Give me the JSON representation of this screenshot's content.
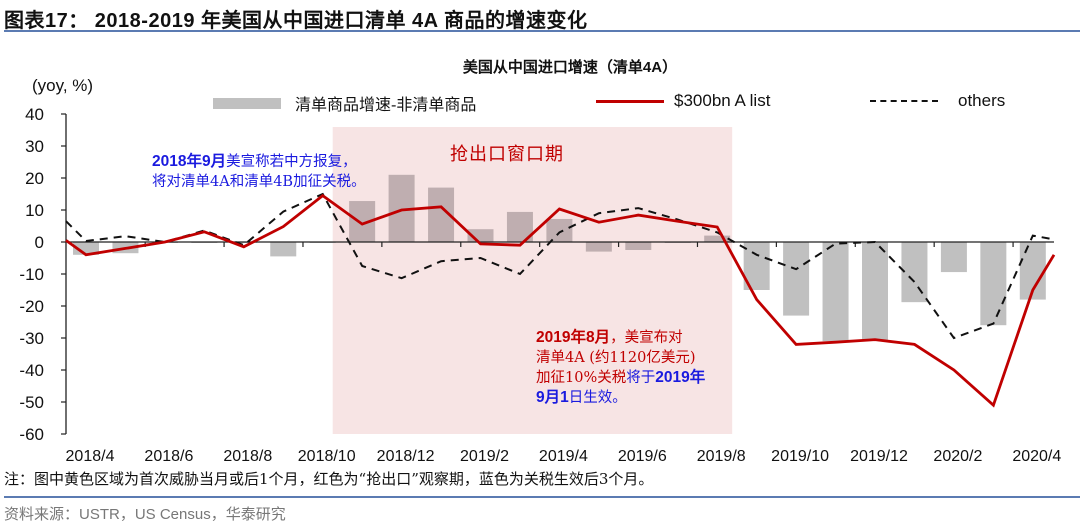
{
  "figure": {
    "title": "图表17：  2018-2019 年美国从中国进口清单 4A 商品的增速变化",
    "note": "注：图中黄色区域为首次威胁当月或后1个月，红色为“抢出口”观察期，蓝色为关税生效后3个月。",
    "source": "资料来源：USTR，US Census，华泰研究"
  },
  "annotations": {
    "window_label": "抢出口窗口期",
    "sept2018": {
      "line1_bold": "2018年9月",
      "line1_rest": "美宣称若中方报复，",
      "line2": "将对清单4A和清单4B加征关税。"
    },
    "aug2019": {
      "line1_bold": "2019年8月",
      "line1_rest": "，美宣布对",
      "line2": "清单4A (约1120亿美元)",
      "line3_red": "加征10%关税",
      "line3_blue": "将于",
      "line3_bold": "2019年",
      "line4_bold": "9月1",
      "line4_rest": "日生效。"
    }
  },
  "colors": {
    "bar": "#c0c0c0",
    "bar_in_window": "#bfaeb0",
    "red_line": "#c00000",
    "dash_line": "#111111",
    "window_fill": "#f7e4e4",
    "rule": "#5b7bb2",
    "annotation_blue": "#1a1adf"
  },
  "chart_data": {
    "type": "bar+line",
    "title": "美国从中国进口增速（清单4A）",
    "ylabel": "(yoy, %)",
    "xlabel": "",
    "ylim": [
      -60,
      40
    ],
    "yticks": [
      40,
      30,
      20,
      10,
      0,
      -10,
      -20,
      -30,
      -40,
      -50,
      -60
    ],
    "xtick_labels": [
      "2018/4",
      "2018/6",
      "2018/8",
      "2018/10",
      "2018/12",
      "2019/2",
      "2019/4",
      "2019/6",
      "2019/8",
      "2019/10",
      "2019/12",
      "2020/2",
      "2020/4"
    ],
    "categories": [
      "2018/4",
      "2018/5",
      "2018/6",
      "2018/7",
      "2018/8",
      "2018/9",
      "2018/10",
      "2018/11",
      "2018/12",
      "2019/1",
      "2019/2",
      "2019/3",
      "2019/4",
      "2019/5",
      "2019/6",
      "2019/7",
      "2019/8",
      "2019/9",
      "2019/10",
      "2019/11",
      "2019/12",
      "2020/1",
      "2020/2",
      "2020/3",
      "2020/4"
    ],
    "legend_position": "top",
    "grid": false,
    "shaded_region": {
      "label": "抢出口窗口期",
      "from": "2018/10",
      "to": "2019/8"
    },
    "series": [
      {
        "name": "清单商品增速-非清单商品",
        "type": "bar",
        "values": [
          -4,
          -3.5,
          -0.3,
          -0.3,
          -0.2,
          -4.5,
          -0.2,
          12.8,
          21,
          17,
          4,
          9.4,
          7.2,
          -3,
          -2.5,
          -0.3,
          2,
          -15,
          -23,
          -31,
          -30.6,
          -18.8,
          -9.4,
          -26,
          -18
        ]
      },
      {
        "name": "$300bn A list",
        "type": "line",
        "values": [
          -4,
          -2,
          0,
          3.2,
          -1.5,
          4.8,
          14.5,
          5.6,
          10,
          11,
          -0.6,
          -1,
          10.3,
          6.2,
          8.4,
          6.5,
          4.7,
          -18,
          -32,
          -31.3,
          -30.5,
          -32,
          -40,
          -51,
          -15
        ],
        "start_value": 0.5,
        "end_value": -4
      },
      {
        "name": "others",
        "type": "line",
        "style": "dashed",
        "values": [
          0.3,
          1.8,
          0,
          3.6,
          -1,
          9.5,
          15,
          -7.5,
          -11.3,
          -6,
          -5,
          -10,
          3,
          9,
          10.6,
          7,
          3,
          -4,
          -8.5,
          -0.5,
          0,
          -12.5,
          -30,
          -25.5,
          2
        ],
        "start_value": 6.5,
        "end_value": 0.8
      }
    ]
  }
}
